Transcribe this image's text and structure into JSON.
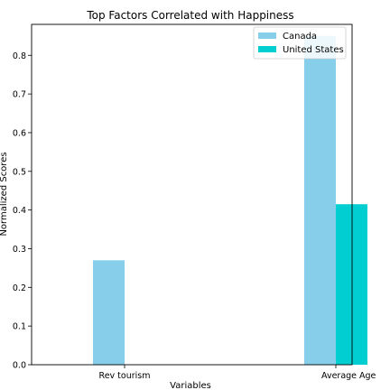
{
  "chart_data": {
    "type": "bar",
    "title": "Top Factors Correlated with Happiness",
    "xlabel": "Variables",
    "ylabel": "Normalized Scores",
    "categories": [
      "Rev tourism",
      "Average Age"
    ],
    "series": [
      {
        "name": "Canada",
        "values": [
          0.27,
          0.85
        ],
        "color": "#87ceeb"
      },
      {
        "name": "United States",
        "values": [
          0.0,
          0.415
        ],
        "color": "#00ced1"
      }
    ],
    "yticks": [
      "0.0",
      "0.1",
      "0.2",
      "0.3",
      "0.4",
      "0.5",
      "0.6",
      "0.7",
      "0.8"
    ],
    "ylim": [
      0,
      0.88
    ],
    "grid": false,
    "legend_position": "top-right"
  }
}
